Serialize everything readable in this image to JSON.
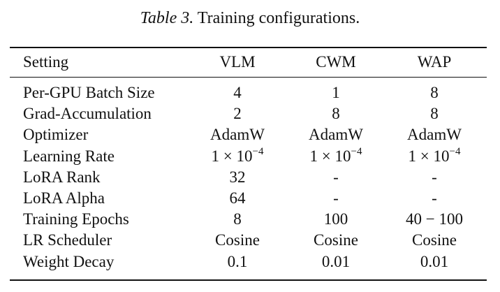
{
  "caption": {
    "label": "Table 3.",
    "text": "Training configurations."
  },
  "table": {
    "headers": [
      "Setting",
      "VLM",
      "CWM",
      "WAP"
    ],
    "rows": [
      {
        "setting": "Per-GPU Batch Size",
        "vlm": "4",
        "cwm": "1",
        "wap": "8"
      },
      {
        "setting": "Grad-Accumulation",
        "vlm": "2",
        "cwm": "8",
        "wap": "8"
      },
      {
        "setting": "Optimizer",
        "vlm": "AdamW",
        "cwm": "AdamW",
        "wap": "AdamW"
      },
      {
        "setting": "Learning Rate",
        "vlm": "1 × 10−4",
        "cwm": "1 × 10−4",
        "wap": "1 × 10−4"
      },
      {
        "setting": "LoRA Rank",
        "vlm": "32",
        "cwm": "-",
        "wap": "-"
      },
      {
        "setting": "LoRA Alpha",
        "vlm": "64",
        "cwm": "-",
        "wap": "-"
      },
      {
        "setting": "Training Epochs",
        "vlm": "8",
        "cwm": "100",
        "wap": "40 − 100"
      },
      {
        "setting": "LR Scheduler",
        "vlm": "Cosine",
        "cwm": "Cosine",
        "wap": "Cosine"
      },
      {
        "setting": "Weight Decay",
        "vlm": "0.1",
        "cwm": "0.01",
        "wap": "0.01"
      }
    ]
  }
}
